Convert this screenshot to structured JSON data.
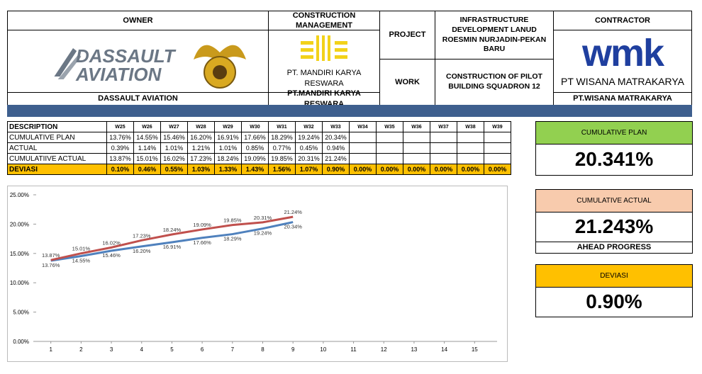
{
  "header": {
    "owner": {
      "title": "OWNER",
      "logo_line1": "DASSAULT",
      "logo_line2": "AVIATION",
      "name": "DASSAULT AVIATION"
    },
    "construction_management": {
      "title": "CONSTRUCTION MANAGEMENT",
      "logo_text": "PT. MANDIRI KARYA RESWARA",
      "name": "PT.MANDIRI KARYA RESWARA"
    },
    "project": {
      "label": "PROJECT",
      "text": "INFRASTRUCTURE DEVELOPMENT LANUD ROESMIN NURJADIN-PEKAN BARU"
    },
    "work": {
      "label": "WORK",
      "text": "CONSTRUCTION OF PILOT BUILDING SQUADRON 12"
    },
    "contractor": {
      "title": "CONTRACTOR",
      "logo_mark": "wmk",
      "logo_text": "PT WISANA MATRAKARYA",
      "name": "PT.WISANA MATRAKARYA"
    }
  },
  "table": {
    "columns": [
      "DESCRIPTION",
      "W25",
      "W26",
      "W27",
      "W28",
      "W29",
      "W30",
      "W31",
      "W32",
      "W33",
      "W34",
      "W35",
      "W36",
      "W37",
      "W38",
      "W39"
    ],
    "rows": [
      [
        "CUMULATIVE PLAN",
        "13.76%",
        "14.55%",
        "15.46%",
        "16.20%",
        "16.91%",
        "17.66%",
        "18.29%",
        "19.24%",
        "20.34%",
        null,
        null,
        null,
        null,
        null,
        null
      ],
      [
        "ACTUAL",
        "0.39%",
        "1.14%",
        "1.01%",
        "1.21%",
        "1.01%",
        "0.85%",
        "0.77%",
        "0.45%",
        "0.94%",
        null,
        null,
        null,
        null,
        null,
        null
      ],
      [
        "CUMULATIIVE ACTUAL",
        "13.87%",
        "15.01%",
        "16.02%",
        "17.23%",
        "18.24%",
        "19.09%",
        "19.85%",
        "20.31%",
        "21.24%",
        null,
        null,
        null,
        null,
        null,
        null
      ],
      [
        "DEVIASI",
        "0.10%",
        "0.46%",
        "0.55%",
        "1.03%",
        "1.33%",
        "1.43%",
        "1.56%",
        "1.07%",
        "0.90%",
        "0.00%",
        "0.00%",
        "0.00%",
        "0.00%",
        "0.00%",
        "0.00%"
      ]
    ]
  },
  "kpis": [
    {
      "title": "CUMULATIVE PLAN",
      "value": "20.341%",
      "color": "#92d050"
    },
    {
      "title": "CUMULATIVE ACTUAL",
      "value": "21.243%",
      "note": "AHEAD PROGRESS",
      "color": "#f8cbad"
    },
    {
      "title": "DEVIASI",
      "value": "0.90%",
      "color": "#ffc000"
    }
  ],
  "chart_data": {
    "type": "line",
    "x": [
      1,
      2,
      3,
      4,
      5,
      6,
      7,
      8,
      9,
      10,
      11,
      12,
      13,
      14,
      15
    ],
    "xlim": [
      0,
      16
    ],
    "xticks": [
      1,
      2,
      3,
      4,
      5,
      6,
      7,
      8,
      9,
      10,
      11,
      12,
      13,
      14,
      15
    ],
    "ylim": [
      0,
      25
    ],
    "yticks": [
      {
        "value": 0,
        "label": "0.00%"
      },
      {
        "value": 5,
        "label": "5.00%"
      },
      {
        "value": 10,
        "label": "10.00%"
      },
      {
        "value": 15,
        "label": "15.00%"
      },
      {
        "value": 20,
        "label": "20.00%"
      },
      {
        "value": 25,
        "label": "25.00%"
      }
    ],
    "series": [
      {
        "color": "#4f81bd",
        "values": [
          13.76,
          14.55,
          15.46,
          16.2,
          16.91,
          17.66,
          18.29,
          19.24,
          20.34,
          null,
          null,
          null,
          null,
          null,
          null
        ],
        "value_labels": [
          "13.76%",
          "14.55%",
          "15.46%",
          "16.20%",
          "16.91%",
          "17.66%",
          "18.29%",
          "19.24%",
          "20.34%",
          null,
          null,
          null,
          null,
          null,
          null
        ]
      },
      {
        "color": "#c0504d",
        "values": [
          13.87,
          15.01,
          16.02,
          17.23,
          18.24,
          19.09,
          19.85,
          20.31,
          21.24,
          null,
          null,
          null,
          null,
          null,
          null
        ],
        "value_labels": [
          "13.87%",
          "15.01%",
          "16.02%",
          "17.23%",
          "18.24%",
          "19.09%",
          "19.85%",
          "20.31%",
          "21.24%",
          null,
          null,
          null,
          null,
          null,
          null
        ]
      }
    ]
  }
}
